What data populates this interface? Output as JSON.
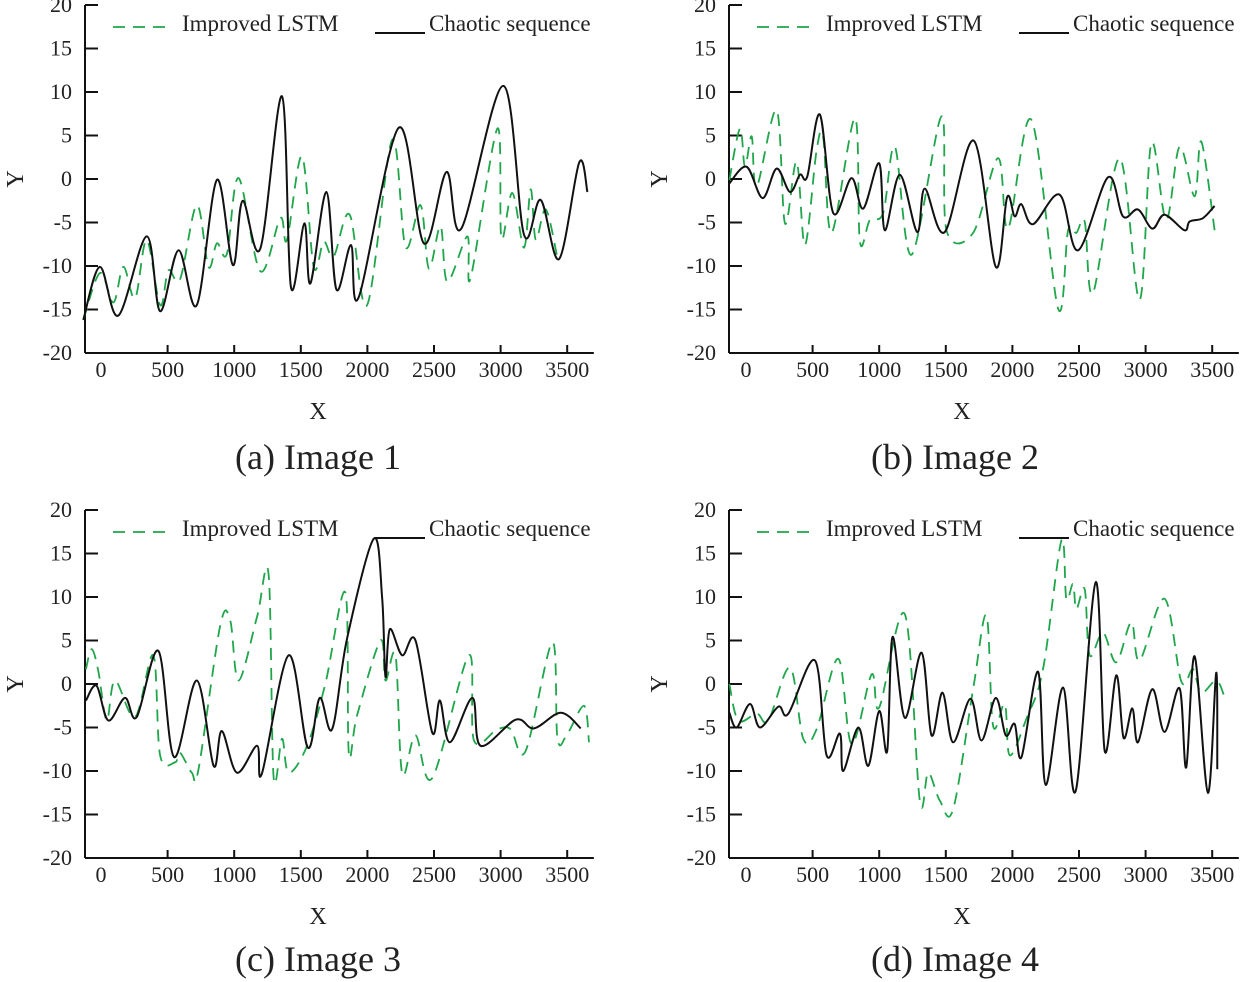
{
  "colors": {
    "improved_lstm": "#1fa64a",
    "chaotic_sequence": "#111111"
  },
  "chart_data": [
    {
      "type": "line",
      "caption": "(a) Image 1",
      "xlabel": "X",
      "ylabel": "Y",
      "xlim": [
        -120,
        3700
      ],
      "ylim": [
        -20,
        20
      ],
      "xticks": [
        0,
        500,
        1000,
        1500,
        2000,
        2500,
        3000,
        3500
      ],
      "yticks": [
        20,
        15,
        10,
        5,
        0,
        -5,
        -10,
        -15,
        -20
      ],
      "legend": "top",
      "grid": false,
      "series": [
        {
          "name": "Improved LSTM",
          "style": "dashed",
          "x": [
            -133,
            -8,
            93,
            168,
            256,
            343,
            444,
            506,
            594,
            719,
            807,
            870,
            945,
            1033,
            1196,
            1346,
            1396,
            1509,
            1597,
            1672,
            1747,
            1867,
            1998,
            2186,
            2286,
            2399,
            2462,
            2549,
            2600,
            2750,
            2775,
            2976,
            3006,
            3088,
            3176,
            3226,
            3264,
            3339,
            3427
          ],
          "y": [
            -16.2,
            -10.8,
            -14.2,
            -10.1,
            -13.7,
            -7.0,
            -14.5,
            -10.5,
            -11.5,
            -3.0,
            -10.1,
            -7.4,
            -8.6,
            0.1,
            -10.6,
            -4.5,
            -7.0,
            2.6,
            -10.1,
            -7.2,
            -8.9,
            -4.1,
            -14.5,
            4.5,
            -7.8,
            -3.0,
            -10.3,
            -5.4,
            -11.8,
            -6.6,
            -11.4,
            5.8,
            -6.8,
            -1.6,
            -7.9,
            -1.2,
            -7.0,
            -3.5,
            -9.1
          ]
        },
        {
          "name": "Chaotic sequence",
          "style": "solid",
          "x": [
            -133,
            -8,
            130,
            343,
            444,
            582,
            719,
            870,
            990,
            1063,
            1196,
            1359,
            1426,
            1527,
            1572,
            1692,
            1767,
            1877,
            1935,
            2236,
            2424,
            2594,
            2705,
            3020,
            3176,
            3301,
            3439,
            3590,
            3652
          ],
          "y": [
            -16.2,
            -10.1,
            -15.7,
            -6.6,
            -15.2,
            -8.2,
            -14.5,
            -0.1,
            -9.9,
            -2.5,
            -8.0,
            9.5,
            -12.4,
            -5.1,
            -12.0,
            -1.5,
            -12.7,
            -7.6,
            -13.6,
            5.9,
            -7.4,
            0.8,
            -5.7,
            10.7,
            -6.4,
            -2.4,
            -9.2,
            1.9,
            -1.5
          ]
        }
      ]
    },
    {
      "type": "line",
      "caption": "(b) Image 2",
      "xlabel": "X",
      "ylabel": "Y",
      "xlim": [
        -128,
        3700
      ],
      "ylim": [
        -20,
        20
      ],
      "xticks": [
        0,
        500,
        1000,
        1500,
        2000,
        2500,
        3000,
        3500
      ],
      "yticks": [
        20,
        15,
        10,
        5,
        0,
        -5,
        -10,
        -15,
        -20
      ],
      "legend": "top",
      "grid": false,
      "series": [
        {
          "name": "Improved LSTM",
          "style": "dashed",
          "x": [
            -125,
            -45,
            -8,
            43,
            80,
            230,
            293,
            380,
            443,
            530,
            580,
            643,
            818,
            855,
            930,
            1030,
            1118,
            1243,
            1468,
            1505,
            1705,
            1893,
            1968,
            2143,
            2343,
            2418,
            2480,
            2543,
            2605,
            2805,
            2955,
            3043,
            3155,
            3255,
            3368,
            3418,
            3518
          ],
          "y": [
            -0.1,
            5.8,
            1.4,
            4.9,
            -0.9,
            7.9,
            -5.1,
            2.0,
            -7.6,
            3.3,
            4.7,
            -6.2,
            7.0,
            -7.2,
            -4.7,
            -3.9,
            3.7,
            -8.7,
            7.2,
            -5.9,
            -6.2,
            2.4,
            -5.7,
            6.8,
            -14.9,
            -5.9,
            -6.2,
            -4.9,
            -13.1,
            2.4,
            -13.9,
            4.1,
            -4.7,
            3.7,
            -2.0,
            4.3,
            -5.9
          ]
        },
        {
          "name": "Chaotic sequence",
          "style": "solid",
          "x": [
            -125,
            5,
            125,
            230,
            330,
            405,
            460,
            555,
            655,
            792,
            880,
            1000,
            1042,
            1155,
            1285,
            1342,
            1492,
            1710,
            1875,
            1960,
            2017,
            2067,
            2155,
            2355,
            2493,
            2718,
            2830,
            2943,
            3050,
            3142,
            3292,
            3330,
            3430,
            3518
          ],
          "y": [
            -0.5,
            1.4,
            -2.2,
            1.2,
            -1.5,
            0.5,
            0.3,
            7.4,
            -3.9,
            0.1,
            -3.4,
            1.8,
            -5.9,
            0.5,
            -6.1,
            -1.1,
            -6.1,
            4.4,
            -10.1,
            -2.1,
            -4.3,
            -2.9,
            -5.2,
            -1.8,
            -8.2,
            0.2,
            -4.3,
            -3.5,
            -5.7,
            -4.1,
            -5.9,
            -4.9,
            -4.5,
            -3.1
          ]
        }
      ]
    },
    {
      "type": "line",
      "caption": "(c) Image 3",
      "xlabel": "X",
      "ylabel": "Y",
      "xlim": [
        -120,
        3700
      ],
      "ylim": [
        -20,
        20
      ],
      "xticks": [
        0,
        500,
        1000,
        1500,
        2000,
        2500,
        3000,
        3500
      ],
      "yticks": [
        20,
        15,
        10,
        5,
        0,
        -5,
        -10,
        -15,
        -20
      ],
      "legend": "top",
      "grid": false,
      "series": [
        {
          "name": "Improved LSTM",
          "style": "dashed",
          "x": [
            -113,
            -70,
            -20,
            43,
            105,
            256,
            393,
            444,
            556,
            594,
            682,
            732,
            895,
            970,
            1033,
            1171,
            1258,
            1296,
            1359,
            1409,
            1547,
            1684,
            1835,
            1860,
            1923,
            2098,
            2136,
            2211,
            2261,
            2361,
            2487,
            2762,
            2800,
            2976,
            3076,
            3188,
            3389,
            3427,
            3502,
            3627,
            3664
          ],
          "y": [
            1.7,
            4.0,
            1.5,
            -4.2,
            0.4,
            -3.8,
            3.3,
            -8.2,
            -9.0,
            -7.9,
            -10.2,
            -9.8,
            6.7,
            7.3,
            0.4,
            7.7,
            12.6,
            -10.7,
            -6.3,
            -10.2,
            -7.1,
            0.0,
            10.5,
            -7.9,
            -3.6,
            5.0,
            0.4,
            3.3,
            -10.3,
            -5.9,
            -10.8,
            3.3,
            -6.5,
            -5.2,
            -5.2,
            -7.7,
            4.8,
            -6.3,
            -5.7,
            -2.5,
            -6.7
          ]
        },
        {
          "name": "Chaotic sequence",
          "style": "solid",
          "x": [
            -113,
            -33,
            55,
            180,
            268,
            431,
            549,
            719,
            845,
            907,
            1020,
            1171,
            1208,
            1409,
            1552,
            1642,
            1735,
            1847,
            2048,
            2111,
            2136,
            2168,
            2261,
            2361,
            2487,
            2544,
            2619,
            2788,
            2850,
            3113,
            3251,
            3452,
            3602
          ],
          "y": [
            -1.9,
            -0.2,
            -4.2,
            -1.6,
            -3.8,
            3.8,
            -8.4,
            0.4,
            -9.4,
            -5.4,
            -10.2,
            -7.1,
            -10.3,
            3.3,
            -7.3,
            -1.6,
            -5.2,
            5.2,
            16.7,
            9.8,
            0.8,
            6.3,
            3.3,
            5.0,
            -5.6,
            -1.9,
            -6.7,
            -1.6,
            -7.1,
            -4.1,
            -5.1,
            -3.3,
            -5.1
          ]
        }
      ]
    },
    {
      "type": "line",
      "caption": "(d) Image 4",
      "xlabel": "X",
      "ylabel": "Y",
      "xlim": [
        -128,
        3700
      ],
      "ylim": [
        -20,
        20
      ],
      "xticks": [
        0,
        500,
        1000,
        1500,
        2000,
        2500,
        3000,
        3500
      ],
      "yticks": [
        20,
        15,
        10,
        5,
        0,
        -5,
        -10,
        -15,
        -20
      ],
      "legend": "top",
      "grid": false,
      "series": [
        {
          "name": "Improved LSTM",
          "style": "dashed",
          "x": [
            -125,
            -58,
            80,
            168,
            330,
            430,
            530,
            693,
            793,
            943,
            1000,
            1193,
            1305,
            1368,
            1455,
            1555,
            1705,
            1805,
            1855,
            1943,
            1980,
            2105,
            2230,
            2368,
            2405,
            2455,
            2480,
            2543,
            2580,
            2680,
            2780,
            2893,
            2955,
            3142,
            3268,
            3355,
            3418,
            3530,
            3593
          ],
          "y": [
            0.0,
            -4.2,
            -3.4,
            -4.2,
            1.9,
            -6.3,
            -5.2,
            2.9,
            -6.9,
            1.1,
            -2.7,
            8.0,
            -13.4,
            -10.2,
            -13.4,
            -14.4,
            -0.6,
            7.9,
            -4.8,
            -2.3,
            -8.2,
            -4.0,
            1.7,
            16.5,
            9.8,
            11.5,
            8.6,
            10.9,
            3.3,
            5.9,
            2.5,
            7.1,
            2.7,
            9.8,
            0.3,
            1.7,
            -1.0,
            0.4,
            -1.5
          ]
        },
        {
          "name": "Chaotic sequence",
          "style": "solid",
          "x": [
            -125,
            -70,
            30,
            105,
            243,
            318,
            518,
            605,
            705,
            730,
            843,
            918,
            1000,
            1060,
            1100,
            1193,
            1318,
            1393,
            1475,
            1555,
            1685,
            1768,
            1875,
            1950,
            2017,
            2068,
            2193,
            2250,
            2380,
            2475,
            2625,
            2693,
            2780,
            2835,
            2900,
            2943,
            3050,
            3142,
            3255,
            3305,
            3368,
            3468,
            3530,
            3538
          ],
          "y": [
            -3.3,
            -5.0,
            -2.3,
            -5.0,
            -2.6,
            -3.4,
            2.7,
            -8.2,
            -5.7,
            -10.0,
            -5.0,
            -9.4,
            -3.1,
            -7.7,
            5.4,
            -3.9,
            3.6,
            -5.9,
            -1.0,
            -6.7,
            -1.7,
            -6.5,
            -1.6,
            -5.9,
            -4.6,
            -8.4,
            1.4,
            -11.6,
            -0.4,
            -12.3,
            11.7,
            -7.7,
            1.0,
            -6.2,
            -2.8,
            -6.7,
            -0.6,
            -5.5,
            -0.5,
            -9.6,
            3.2,
            -12.5,
            1.3,
            -9.8
          ]
        }
      ]
    }
  ]
}
